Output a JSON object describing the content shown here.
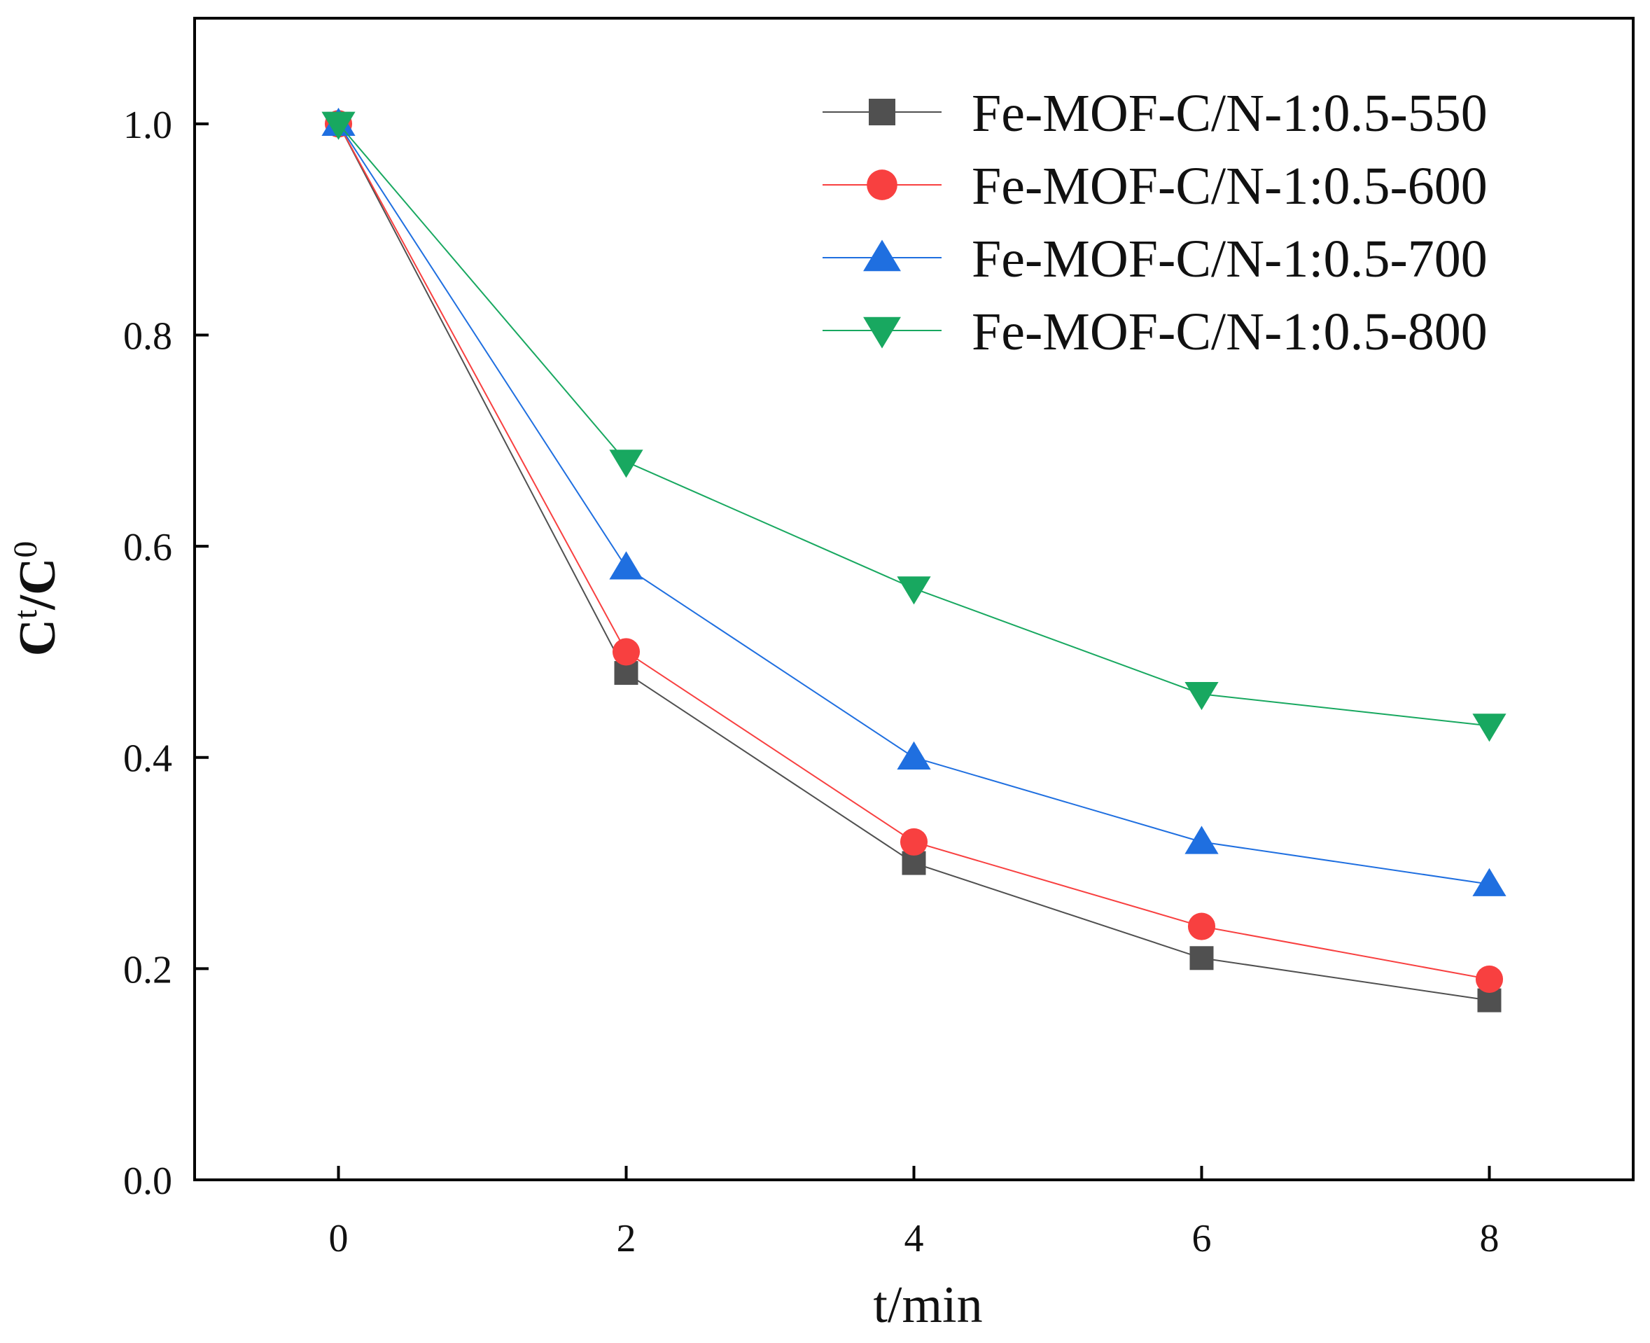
{
  "chart_data": {
    "type": "line",
    "title": "",
    "xlabel": "t/min",
    "ylabel": {
      "base": "C",
      "sup1": "t",
      "slash": "/C",
      "sup2": "0"
    },
    "xlim": [
      -1,
      9
    ],
    "ylim": [
      0,
      1.1
    ],
    "x_ticks": [
      0,
      2,
      4,
      6,
      8
    ],
    "y_ticks": [
      0.0,
      0.2,
      0.4,
      0.6,
      0.8,
      1.0
    ],
    "x_tick_labels": [
      "0",
      "2",
      "4",
      "6",
      "8"
    ],
    "y_tick_labels": [
      "0.0",
      "0.2",
      "0.4",
      "0.6",
      "0.8",
      "1.0"
    ],
    "grid": false,
    "legend_position": "top-right",
    "x": [
      0,
      2,
      4,
      6,
      8
    ],
    "series": [
      {
        "name": "Fe-MOF-C/N-1:0.5-550",
        "color": "#505050",
        "marker": "square",
        "values": [
          1.0,
          0.48,
          0.3,
          0.21,
          0.17
        ]
      },
      {
        "name": "Fe-MOF-C/N-1:0.5-600",
        "color": "#f84040",
        "marker": "circle",
        "values": [
          1.0,
          0.5,
          0.32,
          0.24,
          0.19
        ]
      },
      {
        "name": "Fe-MOF-C/N-1:0.5-700",
        "color": "#1f6fe0",
        "marker": "triangle-up",
        "values": [
          1.0,
          0.58,
          0.4,
          0.32,
          0.28
        ]
      },
      {
        "name": "Fe-MOF-C/N-1:0.5-800",
        "color": "#18a860",
        "marker": "triangle-down",
        "values": [
          1.0,
          0.68,
          0.56,
          0.46,
          0.43
        ]
      }
    ]
  }
}
